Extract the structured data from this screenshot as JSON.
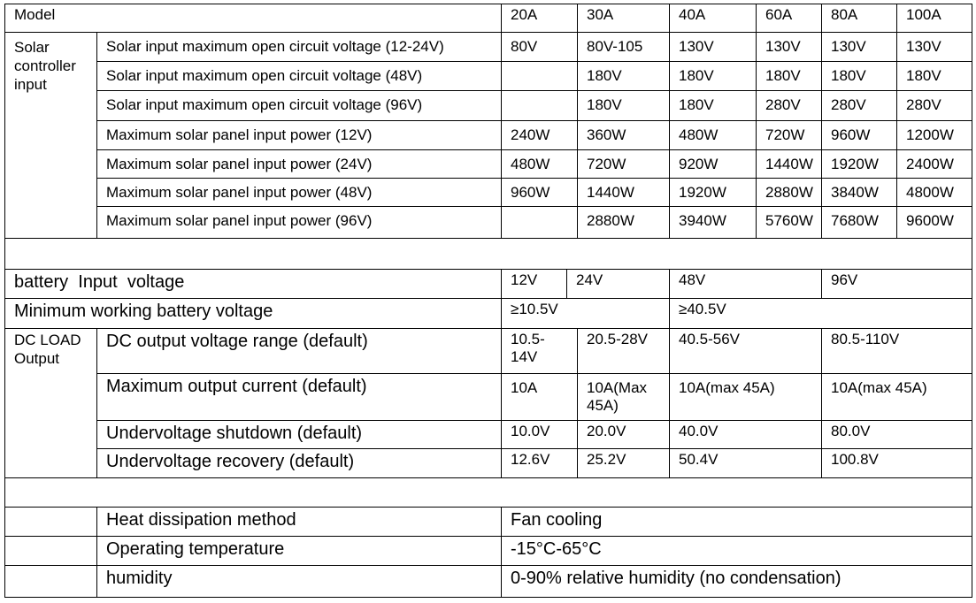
{
  "header": {
    "model_label": "Model",
    "models": [
      "20A",
      "30A",
      "40A",
      "60A",
      "80A",
      "100A"
    ]
  },
  "solar": {
    "group_label": "Solar controller input",
    "rows": [
      {
        "label": "Solar input maximum open circuit voltage (12-24V)",
        "values": [
          "80V",
          "80V-105",
          "130V",
          "130V",
          "130V",
          "130V"
        ]
      },
      {
        "label": "Solar input maximum open circuit voltage (48V)",
        "values": [
          "",
          "180V",
          "180V",
          "180V",
          "180V",
          "180V"
        ]
      },
      {
        "label": "Solar input maximum open circuit voltage (96V)",
        "values": [
          "",
          "180V",
          "180V",
          "280V",
          "280V",
          "280V"
        ]
      },
      {
        "label": "Maximum solar panel input power (12V)",
        "values": [
          "240W",
          "360W",
          "480W",
          "720W",
          "960W",
          "1200W"
        ]
      },
      {
        "label": "Maximum solar panel input power (24V)",
        "values": [
          "480W",
          "720W",
          "920W",
          "1440W",
          "1920W",
          "2400W"
        ]
      },
      {
        "label": "Maximum solar panel input power (48V)",
        "values": [
          "960W",
          "1440W",
          "1920W",
          "2880W",
          "3840W",
          "4800W"
        ]
      },
      {
        "label": "Maximum solar panel input power (96V)",
        "values": [
          "",
          "2880W",
          "3940W",
          "5760W",
          "7680W",
          "9600W"
        ]
      }
    ]
  },
  "battery": {
    "input_label": "battery  Input  voltage",
    "input_values": [
      "12V",
      "24V",
      "48V",
      "96V"
    ],
    "min_label": "Minimum working battery voltage",
    "min_values": [
      "≥10.5V",
      "≥40.5V"
    ]
  },
  "dc": {
    "group_label": "DC LOAD Output",
    "rows": [
      {
        "label": "DC output voltage range (default)",
        "values": [
          "10.5-14V",
          "20.5-28V",
          "40.5-56V",
          "80.5-110V"
        ]
      },
      {
        "label": "Maximum output current (default)",
        "values": [
          "10A",
          "10A(Max 45A)",
          "10A(max 45A)",
          "10A(max 45A)"
        ]
      },
      {
        "label": "Undervoltage shutdown (default)",
        "values": [
          "10.0V",
          "20.0V",
          "40.0V",
          "80.0V"
        ]
      },
      {
        "label": "Undervoltage recovery (default)",
        "values": [
          "12.6V",
          "25.2V",
          "50.4V",
          "100.8V"
        ]
      }
    ]
  },
  "misc": {
    "rows": [
      {
        "label": "Heat dissipation method",
        "value": "Fan cooling"
      },
      {
        "label": "Operating temperature",
        "value": "-15°C-65°C"
      },
      {
        "label": "humidity",
        "value": "0-90% relative humidity (no condensation)"
      }
    ]
  }
}
